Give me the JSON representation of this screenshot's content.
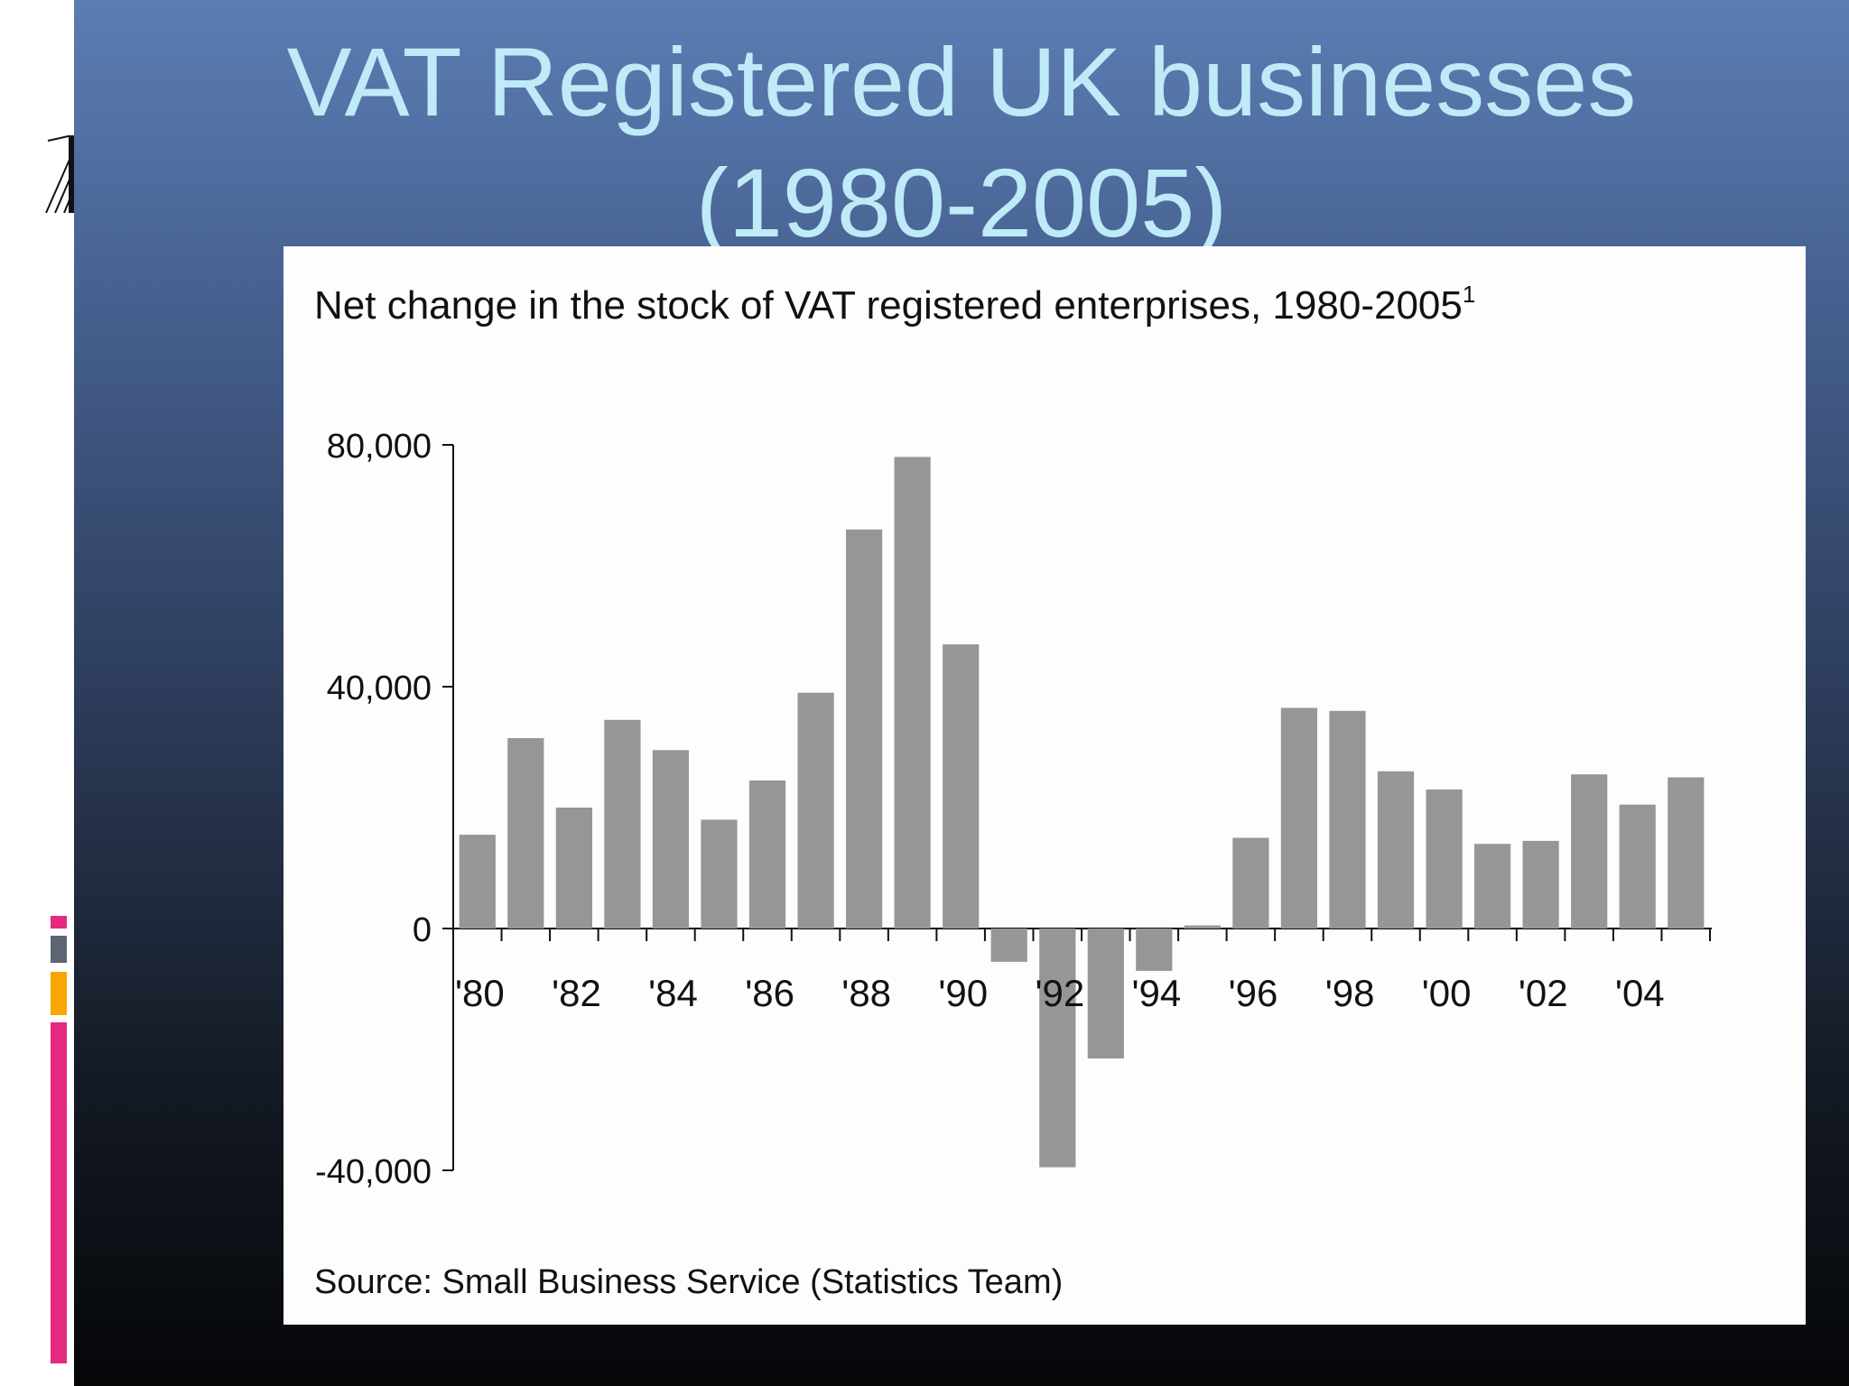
{
  "slide": {
    "title_line1": "VAT Registered UK businesses",
    "title_line2": "(1980-2005)"
  },
  "colors": {
    "title": "#bfeaf8",
    "bar": "#969597",
    "accent_grey": "#5b6573",
    "accent_orange": "#f7a800",
    "accent_pink": "#e6297f"
  },
  "chart_data": {
    "type": "bar",
    "title": "Net change in the stock of VAT registered enterprises, 1980-2005",
    "title_superscript": "1",
    "source": "Source: Small Business Service (Statistics Team)",
    "xlabel": "",
    "ylabel": "",
    "categories": [
      "1980",
      "1981",
      "1982",
      "1983",
      "1984",
      "1985",
      "1986",
      "1987",
      "1988",
      "1989",
      "1990",
      "1991",
      "1992",
      "1993",
      "1994",
      "1995",
      "1996",
      "1997",
      "1998",
      "1999",
      "2000",
      "2001",
      "2002",
      "2003",
      "2004",
      "2005"
    ],
    "values": [
      15500,
      31500,
      20000,
      34500,
      29500,
      18000,
      24500,
      39000,
      66000,
      78000,
      47000,
      -5500,
      -39500,
      -21500,
      -7000,
      500,
      15000,
      36500,
      36000,
      26000,
      23000,
      14000,
      14500,
      25500,
      20500,
      25000
    ],
    "ylim": [
      -40000,
      80000
    ],
    "yticks": [
      -40000,
      0,
      40000,
      80000
    ],
    "ytick_labels": [
      "-40,000",
      "0",
      "40,000",
      "80,000"
    ],
    "xtick_labels": [
      "'80",
      "'82",
      "'84",
      "'86",
      "'88",
      "'90",
      "'92",
      "'94",
      "'96",
      "'98",
      "'00",
      "'02",
      "'04"
    ],
    "grid": false,
    "legend": "none"
  }
}
